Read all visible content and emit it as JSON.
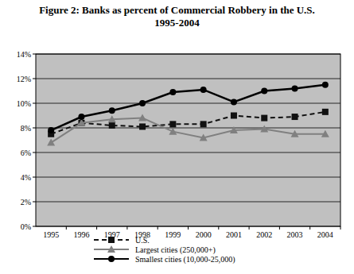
{
  "chart_data": {
    "type": "line",
    "title": "Figure 2: Banks as percent of Commercial Robbery in the U.S.",
    "subtitle": "1995-2004",
    "categories": [
      "1995",
      "1996",
      "1997",
      "1998",
      "1999",
      "2000",
      "2001",
      "2002",
      "2003",
      "2004"
    ],
    "series": [
      {
        "name": "U.S.",
        "color": "#111111",
        "marker": "square",
        "line_style": "dashed",
        "values": [
          7.5,
          8.4,
          8.2,
          8.1,
          8.3,
          8.3,
          9.0,
          8.8,
          8.9,
          9.3
        ]
      },
      {
        "name": "Largest cities (250,000+)",
        "color": "#808080",
        "marker": "triangle",
        "line_style": "solid",
        "values": [
          6.8,
          8.4,
          8.7,
          8.8,
          7.7,
          7.2,
          7.8,
          7.9,
          7.5,
          7.5
        ]
      },
      {
        "name": "Smallest cities (10,000-25,000)",
        "color": "#000000",
        "marker": "circle",
        "line_style": "solid",
        "values": [
          7.8,
          8.9,
          9.4,
          10.0,
          10.9,
          11.1,
          10.1,
          11.0,
          11.2,
          11.5
        ]
      }
    ],
    "ylim": [
      0,
      14
    ],
    "yticks": [
      {
        "value": 0,
        "label": "0%"
      },
      {
        "value": 2,
        "label": "2%"
      },
      {
        "value": 4,
        "label": "4%"
      },
      {
        "value": 6,
        "label": "6%"
      },
      {
        "value": 8,
        "label": "8%"
      },
      {
        "value": 10,
        "label": "10%"
      },
      {
        "value": 12,
        "label": "12%"
      },
      {
        "value": 14,
        "label": "14%"
      }
    ],
    "grid": true,
    "legend": "bottom"
  }
}
